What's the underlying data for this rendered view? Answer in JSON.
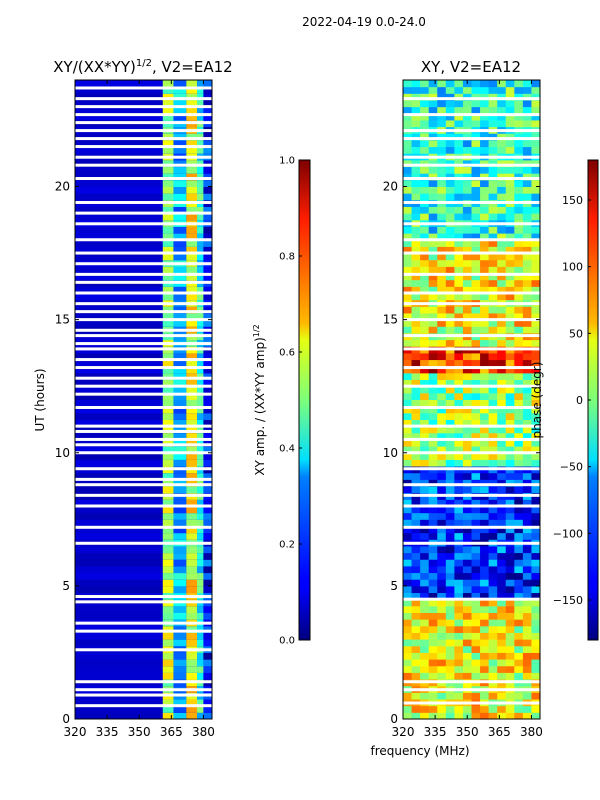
{
  "page": {
    "suptitle": "2022-04-19 0.0-24.0"
  },
  "shared": {
    "xlabel": "frequency (MHz)"
  },
  "chart_data": [
    {
      "type": "heatmap",
      "title": "XY/(XX*YY)^1/2, V2=EA12",
      "title_main": "XY/(XX*YY)",
      "title_sup": "1/2",
      "title_tail": ", V2=EA12",
      "xlabel": "frequency (MHz)",
      "ylabel": "UT (hours)",
      "xlim": [
        320,
        384
      ],
      "ylim": [
        0,
        24
      ],
      "xticks": [
        320,
        335,
        350,
        365,
        380
      ],
      "yticks": [
        0,
        5,
        10,
        15,
        20
      ],
      "colorbar": {
        "label": "XY amp. / (XX*YY amp)^1/2",
        "label_main": "XY amp. / (XX*YY amp)",
        "label_sup": "1/2",
        "range": [
          0.0,
          1.0
        ],
        "ticks": [
          "0.0",
          "0.2",
          "0.4",
          "0.6",
          "0.8",
          "1.0"
        ],
        "tick_values": [
          0.0,
          0.2,
          0.4,
          0.6,
          0.8,
          1.0
        ],
        "colormap": "jet"
      },
      "background_value": 0.05,
      "signal_band": [
        {
          "from": 361,
          "to": 366,
          "value": 0.55
        },
        {
          "from": 366,
          "to": 372,
          "value": 0.3
        },
        {
          "from": 372,
          "to": 377,
          "value": 0.6
        },
        {
          "from": 377,
          "to": 380,
          "value": 0.4
        },
        {
          "from": 380,
          "to": 384,
          "value": 0.15
        }
      ],
      "flagged_hours": [
        0.5,
        0.9,
        1.1,
        1.4,
        2.6,
        3.3,
        3.6,
        4.4,
        4.6,
        6.6,
        7.2,
        8.0,
        8.4,
        8.8,
        9.0,
        9.4,
        10.0,
        10.3,
        10.5,
        10.8,
        11.0,
        11.7,
        12.2,
        12.5,
        12.8,
        13.2,
        13.5,
        13.9,
        14.1,
        14.4,
        14.6,
        15.0,
        15.3,
        15.6,
        16.0,
        16.4,
        16.7,
        17.1,
        17.5,
        18.0,
        18.6,
        19.0,
        19.4,
        20.3,
        20.8,
        21.1,
        21.5,
        21.8,
        22.1,
        22.4,
        22.7,
        23.0,
        23.3,
        23.7
      ]
    },
    {
      "type": "heatmap",
      "title": "XY, V2=EA12",
      "xlabel": "frequency (MHz)",
      "ylabel": "",
      "xlim": [
        320,
        384
      ],
      "ylim": [
        0,
        24
      ],
      "xticks": [
        320,
        335,
        350,
        365,
        380
      ],
      "yticks": [
        0,
        5,
        10,
        15,
        20
      ],
      "colorbar": {
        "label": "phase (degr)",
        "range": [
          -180,
          180
        ],
        "ticks": [
          "150",
          "100",
          "50",
          "0",
          "−50",
          "−100",
          "−150"
        ],
        "tick_values": [
          150,
          100,
          50,
          0,
          -50,
          -100,
          -150
        ],
        "colormap": "jet"
      },
      "phase_segments": [
        {
          "from_hour": 0.0,
          "to_hour": 4.5,
          "phase": 40
        },
        {
          "from_hour": 4.5,
          "to_hour": 9.4,
          "phase": -120
        },
        {
          "from_hour": 9.4,
          "to_hour": 13.0,
          "phase": 10
        },
        {
          "from_hour": 13.0,
          "to_hour": 14.0,
          "phase": 120
        },
        {
          "from_hour": 14.0,
          "to_hour": 18.0,
          "phase": 40
        },
        {
          "from_hour": 18.0,
          "to_hour": 24.0,
          "phase": -30
        }
      ],
      "flagged_hours": [
        0.6,
        1.1,
        1.4,
        4.5,
        6.6,
        7.2,
        8.0,
        8.4,
        8.8,
        9.4,
        10.0,
        10.5,
        11.0,
        11.7,
        12.5,
        13.2,
        13.9,
        14.4,
        15.0,
        15.6,
        16.0,
        16.7,
        17.5,
        18.0,
        18.6,
        19.4,
        20.3,
        20.8,
        21.1,
        21.8,
        22.1,
        22.7,
        23.3
      ]
    }
  ]
}
